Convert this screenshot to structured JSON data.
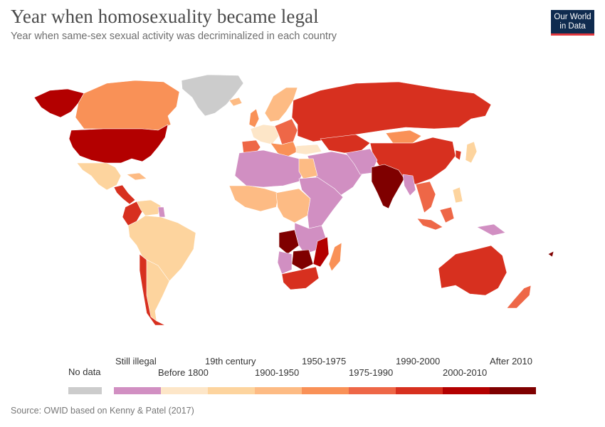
{
  "header": {
    "title": "Year when homosexuality became legal",
    "subtitle": "Year when same-sex sexual activity was decriminalized in each country",
    "logo_line1": "Our World",
    "logo_line2": "in Data"
  },
  "legend": {
    "no_data": {
      "label": "No data",
      "color": "#cccccc"
    },
    "bins": [
      {
        "label": "Still illegal",
        "color": "#d18fc2"
      },
      {
        "label": "Before 1800",
        "color": "#fde6c8"
      },
      {
        "label": "19th century",
        "color": "#fdd49e"
      },
      {
        "label": "1900-1950",
        "color": "#fdbb84"
      },
      {
        "label": "1950-1975",
        "color": "#f99157"
      },
      {
        "label": "1975-1990",
        "color": "#ee6747"
      },
      {
        "label": "1990-2000",
        "color": "#d7301f"
      },
      {
        "label": "2000-2010",
        "color": "#b30000"
      },
      {
        "label": "After 2010",
        "color": "#7f0000"
      }
    ]
  },
  "footer": {
    "source": "Source: OWID based on Kenny & Patel (2017)"
  }
}
